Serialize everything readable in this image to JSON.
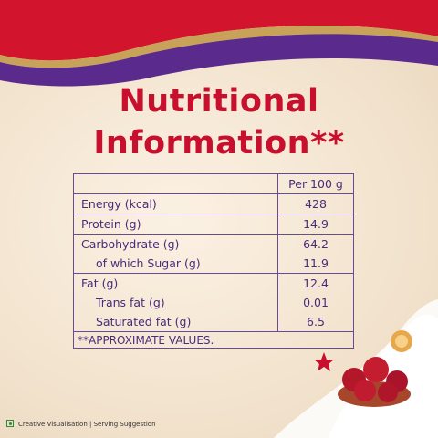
{
  "title": "Nutritional Information**",
  "table": {
    "header": "Per 100 g",
    "groups": [
      [
        [
          "Energy (kcal)",
          428
        ]
      ],
      [
        [
          "Protein (g)",
          14.9
        ]
      ],
      [
        [
          "Carbohydrate (g)",
          64.2
        ],
        [
          "of which Sugar (g)",
          11.9
        ]
      ],
      [
        [
          "Fat (g)",
          12.4
        ],
        [
          "Trans fat (g)",
          0.01
        ],
        [
          "Saturated fat (g)",
          6.5
        ]
      ]
    ],
    "footnote": "**APPROXIMATE VALUES."
  },
  "footer": {
    "caption": "Creative Visualisation | Serving Suggestion"
  }
}
